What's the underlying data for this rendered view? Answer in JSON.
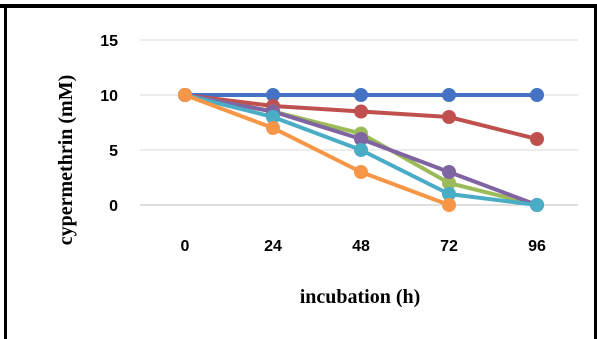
{
  "chart_data": {
    "type": "line",
    "xlabel": "incubation (h)",
    "ylabel": "cypermethrin (mM)",
    "categories": [
      "0",
      "24",
      "48",
      "72",
      "96"
    ],
    "ylim": [
      0,
      15
    ],
    "yticks": [
      "0",
      "5",
      "10",
      "15"
    ],
    "grid": "horizontal",
    "legend": "none",
    "series": [
      {
        "color": "#4472C4",
        "values": [
          10,
          10,
          10,
          10,
          10
        ]
      },
      {
        "color": "#C0504D",
        "values": [
          10,
          9,
          8.5,
          8,
          6
        ]
      },
      {
        "color": "#9BBB59",
        "values": [
          10,
          8.5,
          6.5,
          2,
          0
        ]
      },
      {
        "color": "#8064A2",
        "values": [
          10,
          8.5,
          6,
          3,
          0
        ]
      },
      {
        "color": "#4BACC6",
        "values": [
          10,
          8,
          5,
          1,
          0
        ]
      },
      {
        "color": "#F79646",
        "values": [
          10,
          7,
          3,
          0,
          null
        ]
      }
    ]
  }
}
